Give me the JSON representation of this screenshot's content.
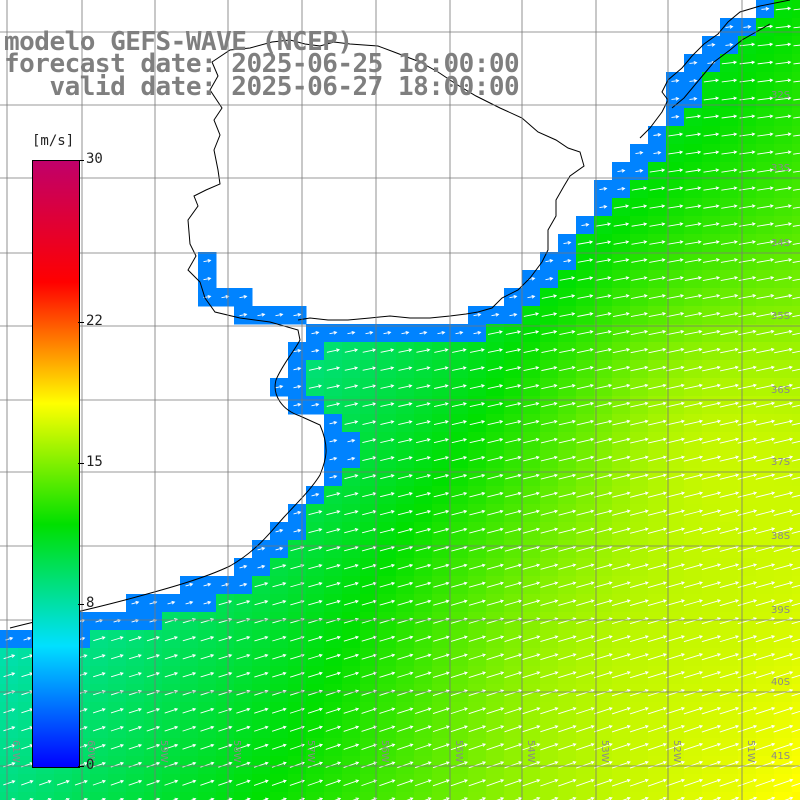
{
  "title": {
    "line1": "modelo GEFS-WAVE (NCEP)",
    "line2": "forecast date: 2025-06-25 18:00:00",
    "line3": "   valid date: 2025-06-27 18:00:00"
  },
  "colorbar": {
    "unit": "[m/s]",
    "min": 0,
    "max": 30,
    "ticks": [
      "0",
      "8",
      "15",
      "22",
      "30"
    ],
    "colors": [
      "#0000ff",
      "#00e0ff",
      "#00e000",
      "#ffff00",
      "#ff0000",
      "#c0006a"
    ]
  },
  "grid": {
    "lat_labels": [
      "32S",
      "33S",
      "34S",
      "35S",
      "36S",
      "37S",
      "38S",
      "39S",
      "40S",
      "41S"
    ],
    "lon_labels": [
      "61W",
      "60W",
      "59W",
      "58W",
      "57W",
      "56W",
      "55W",
      "54W",
      "53W",
      "52W",
      "51W"
    ]
  },
  "colors": {
    "land": "#ffffff",
    "coast": "#000000",
    "gridline": "#777777",
    "arrow": "#ffffff",
    "title_text": "#7f7f7f"
  },
  "legend_placement": "left"
}
